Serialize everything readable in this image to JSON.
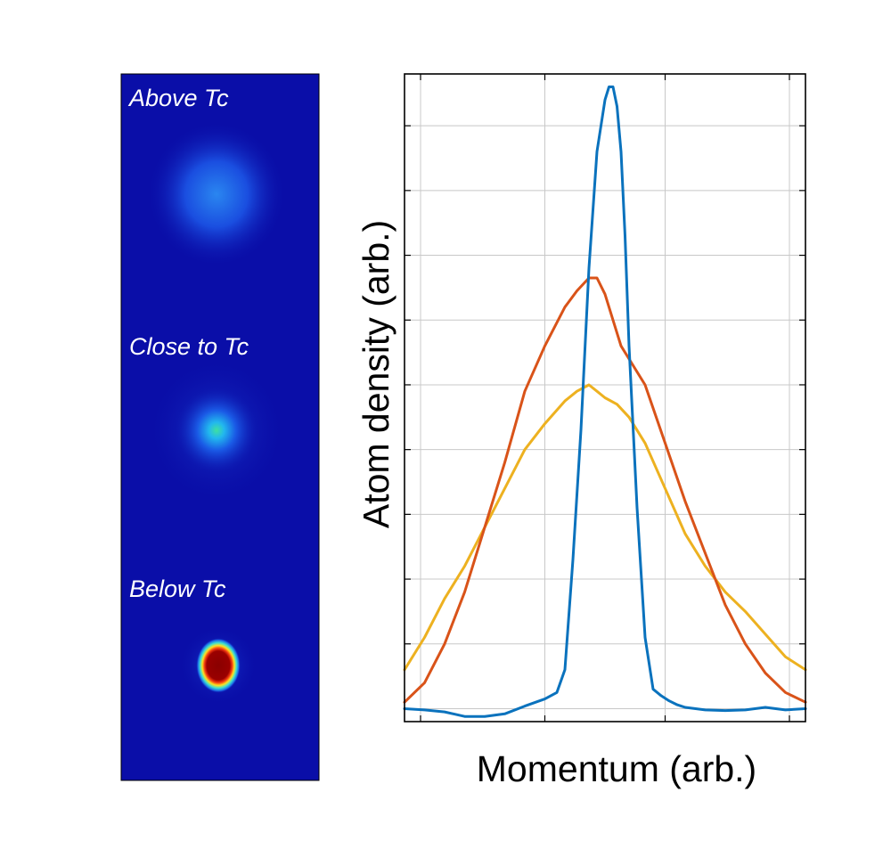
{
  "images": {
    "panels": [
      {
        "label": "Above Tc",
        "glow": "diffuse"
      },
      {
        "label": "Close to Tc",
        "glow": "moderate"
      },
      {
        "label": "Below Tc",
        "glow": "condensate"
      }
    ],
    "colormap": "jet",
    "background_color": "#0a0ea8"
  },
  "chart_data": {
    "type": "line",
    "xlabel": "Momentum (arb.)",
    "ylabel": "Atom density (arb.)",
    "xlim": [
      0,
      100
    ],
    "ylim": [
      0,
      100
    ],
    "x_ticks": [
      4,
      35,
      65,
      96
    ],
    "y_ticks": [
      2,
      12,
      22,
      32,
      42,
      52,
      62,
      72,
      82,
      92
    ],
    "grid": true,
    "tick_labels_shown": false,
    "legend": "none",
    "series": [
      {
        "color": "#0a72bd",
        "shape": "narrow",
        "x": [
          0,
          5,
          10,
          15,
          20,
          25,
          30,
          35,
          38,
          40,
          42,
          44,
          46,
          48,
          50,
          51,
          52,
          53,
          54,
          55,
          56,
          58,
          60,
          62,
          64,
          66,
          68,
          70,
          75,
          80,
          85,
          90,
          95,
          100
        ],
        "y": [
          2,
          1.8,
          1.5,
          0.8,
          0.8,
          1.2,
          2.4,
          3.5,
          4.5,
          8,
          25,
          45,
          70,
          88,
          96,
          98,
          98,
          95,
          88,
          75,
          58,
          33,
          13,
          5,
          4,
          3.2,
          2.6,
          2.2,
          1.8,
          1.7,
          1.8,
          2.2,
          1.8,
          2
        ]
      },
      {
        "color": "#d95319",
        "shape": "medium",
        "x": [
          0,
          5,
          10,
          15,
          20,
          25,
          30,
          35,
          40,
          43,
          46,
          48,
          50,
          52,
          54,
          56,
          60,
          65,
          70,
          75,
          80,
          85,
          90,
          95,
          100
        ],
        "y": [
          3,
          6,
          12,
          20,
          30,
          40,
          51,
          58,
          64,
          66.5,
          68.5,
          68.5,
          66,
          62,
          58,
          56,
          52,
          43,
          34,
          26,
          18,
          12,
          7.5,
          4.5,
          3
        ]
      },
      {
        "color": "#edb120",
        "shape": "broad",
        "x": [
          0,
          5,
          10,
          15,
          20,
          25,
          30,
          35,
          40,
          43,
          46,
          48,
          50,
          53,
          56,
          60,
          65,
          70,
          75,
          80,
          85,
          90,
          95,
          100
        ],
        "y": [
          8,
          13,
          19,
          24,
          30,
          36,
          42,
          46,
          49.5,
          51,
          52,
          51,
          50,
          49,
          47,
          43,
          36,
          29,
          24,
          20,
          17,
          13.5,
          10,
          8
        ]
      }
    ]
  }
}
